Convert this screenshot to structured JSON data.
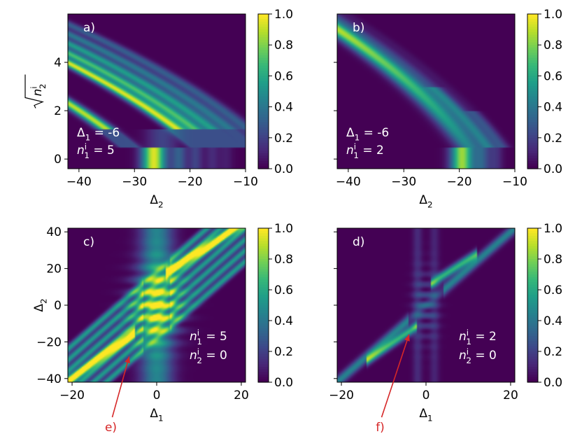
{
  "colormap": [
    "#440154",
    "#482878",
    "#3e4989",
    "#31688e",
    "#26828e",
    "#1f9e89",
    "#35b779",
    "#6ece58",
    "#b5de2b",
    "#fde725"
  ],
  "arrow_color": "#d62728",
  "chart_data": [
    {
      "type": "heatmap",
      "panel_label": "a)",
      "annotations": [
        {
          "sym": "Δ",
          "sub": "1",
          "sup": "",
          "value": " = -6"
        },
        {
          "sym": "n",
          "sub": "1",
          "sup": "i",
          "value": " = 5"
        }
      ],
      "xlabel": {
        "sym": "Δ",
        "sub": "2"
      },
      "ylabel": {
        "sym": "n",
        "sub": "2",
        "sup": "i"
      },
      "xlim": [
        -42,
        -10
      ],
      "ylim": [
        -0.4,
        6.0
      ],
      "xticks": [
        -40,
        -30,
        -20,
        -10
      ],
      "yticks": [
        0,
        2,
        4
      ],
      "colorbar": {
        "range": [
          0,
          1
        ],
        "ticks": [
          "0.0",
          "0.2",
          "0.4",
          "0.6",
          "0.8",
          "1.0"
        ]
      }
    },
    {
      "type": "heatmap",
      "panel_label": "b)",
      "annotations": [
        {
          "sym": "Δ",
          "sub": "1",
          "sup": "",
          "value": " = -6"
        },
        {
          "sym": "n",
          "sub": "1",
          "sup": "i",
          "value": " = 2"
        }
      ],
      "xlabel": {
        "sym": "Δ",
        "sub": "2"
      },
      "ylabel": null,
      "xlim": [
        -42,
        -10
      ],
      "ylim": [
        -0.4,
        6.0
      ],
      "xticks": [
        -40,
        -30,
        -20,
        -10
      ],
      "yticks": [
        0,
        2,
        4
      ],
      "colorbar": {
        "range": [
          0,
          1
        ],
        "ticks": [
          "0.0",
          "0.2",
          "0.4",
          "0.6",
          "0.8",
          "1.0"
        ]
      }
    },
    {
      "type": "heatmap",
      "panel_label": "c)",
      "annotations": [
        {
          "sym": "n",
          "sub": "1",
          "sup": "i",
          "value": " = 5"
        },
        {
          "sym": "n",
          "sub": "2",
          "sup": "i",
          "value": " = 0"
        }
      ],
      "xlabel": {
        "sym": "Δ",
        "sub": "1"
      },
      "ylabel": {
        "sym": "Δ",
        "sub": "2"
      },
      "xlim": [
        -21,
        21
      ],
      "ylim": [
        -42,
        42
      ],
      "xticks": [
        -20,
        0,
        20
      ],
      "yticks": [
        -40,
        -20,
        0,
        20,
        40
      ],
      "colorbar": {
        "range": [
          0,
          1
        ],
        "ticks": [
          "0.0",
          "0.2",
          "0.4",
          "0.6",
          "0.8",
          "1.0"
        ]
      },
      "arrow": {
        "label": "e)",
        "from": [
          -10.5,
          -68
        ],
        "to": [
          -6.5,
          -28
        ]
      }
    },
    {
      "type": "heatmap",
      "panel_label": "d)",
      "annotations": [
        {
          "sym": "n",
          "sub": "1",
          "sup": "i",
          "value": " = 2"
        },
        {
          "sym": "n",
          "sub": "2",
          "sup": "i",
          "value": " = 0"
        }
      ],
      "xlabel": {
        "sym": "Δ",
        "sub": "1"
      },
      "ylabel": null,
      "xlim": [
        -21,
        21
      ],
      "ylim": [
        -42,
        42
      ],
      "xticks": [
        -20,
        0,
        20
      ],
      "yticks": [
        -40,
        -20,
        0,
        20,
        40
      ],
      "colorbar": {
        "range": [
          0,
          1
        ],
        "ticks": [
          "0.0",
          "0.2",
          "0.4",
          "0.6",
          "0.8",
          "1.0"
        ]
      },
      "arrow": {
        "label": "f)",
        "from": [
          -10.5,
          -68
        ],
        "to": [
          -4.0,
          -16
        ]
      }
    }
  ]
}
